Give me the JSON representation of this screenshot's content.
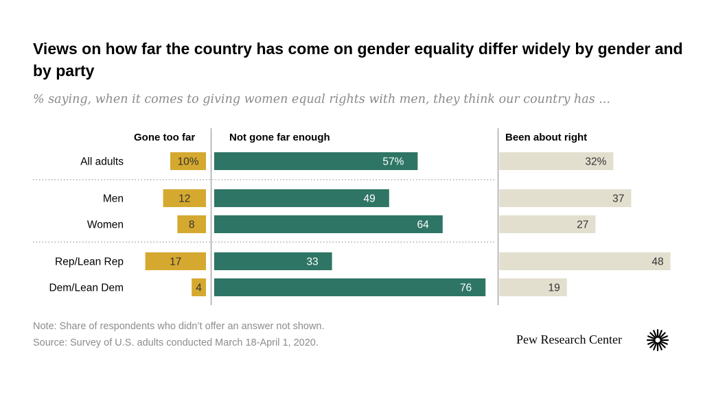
{
  "title": "Views on how far the country has come on gender equality differ widely by gender and by party",
  "subtitle": "% saying, when it comes to giving women equal rights with men, they think our country has ...",
  "column_headers": {
    "gone_too_far": "Gone too far",
    "not_far_enough": "Not gone far enough",
    "about_right": "Been about right"
  },
  "chart_data": {
    "type": "bar",
    "orientation": "horizontal",
    "categories": [
      "All adults",
      "Men",
      "Women",
      "Rep/Lean Rep",
      "Dem/Lean Dem"
    ],
    "groups": [
      [
        "All adults"
      ],
      [
        "Men",
        "Women"
      ],
      [
        "Rep/Lean Rep",
        "Dem/Lean Dem"
      ]
    ],
    "series": [
      {
        "name": "Gone too far",
        "values": [
          10,
          12,
          8,
          17,
          4
        ],
        "labels": [
          "10%",
          "12",
          "8",
          "17",
          "4"
        ],
        "color": "#d5a92f"
      },
      {
        "name": "Not gone far enough",
        "values": [
          57,
          49,
          64,
          33,
          76
        ],
        "labels": [
          "57%",
          "49",
          "64",
          "33",
          "76"
        ],
        "color": "#2e7565"
      },
      {
        "name": "Been about right",
        "values": [
          32,
          37,
          27,
          48,
          19
        ],
        "labels": [
          "32%",
          "37",
          "27",
          "48",
          "19"
        ],
        "color": "#e3dfcf"
      }
    ],
    "label_colors": {
      "gone_too_far": "#333333",
      "not_far_enough": "#ffffff",
      "about_right": "#333333"
    },
    "separator_color": "#999999"
  },
  "notes": {
    "note": "Note: Share of respondents who didn’t offer an answer not shown.",
    "source": "Source: Survey of U.S. adults conducted March 18-April 1, 2020."
  },
  "branding": {
    "name": "Pew Research Center",
    "logo_icon": "pew-starburst-icon"
  }
}
